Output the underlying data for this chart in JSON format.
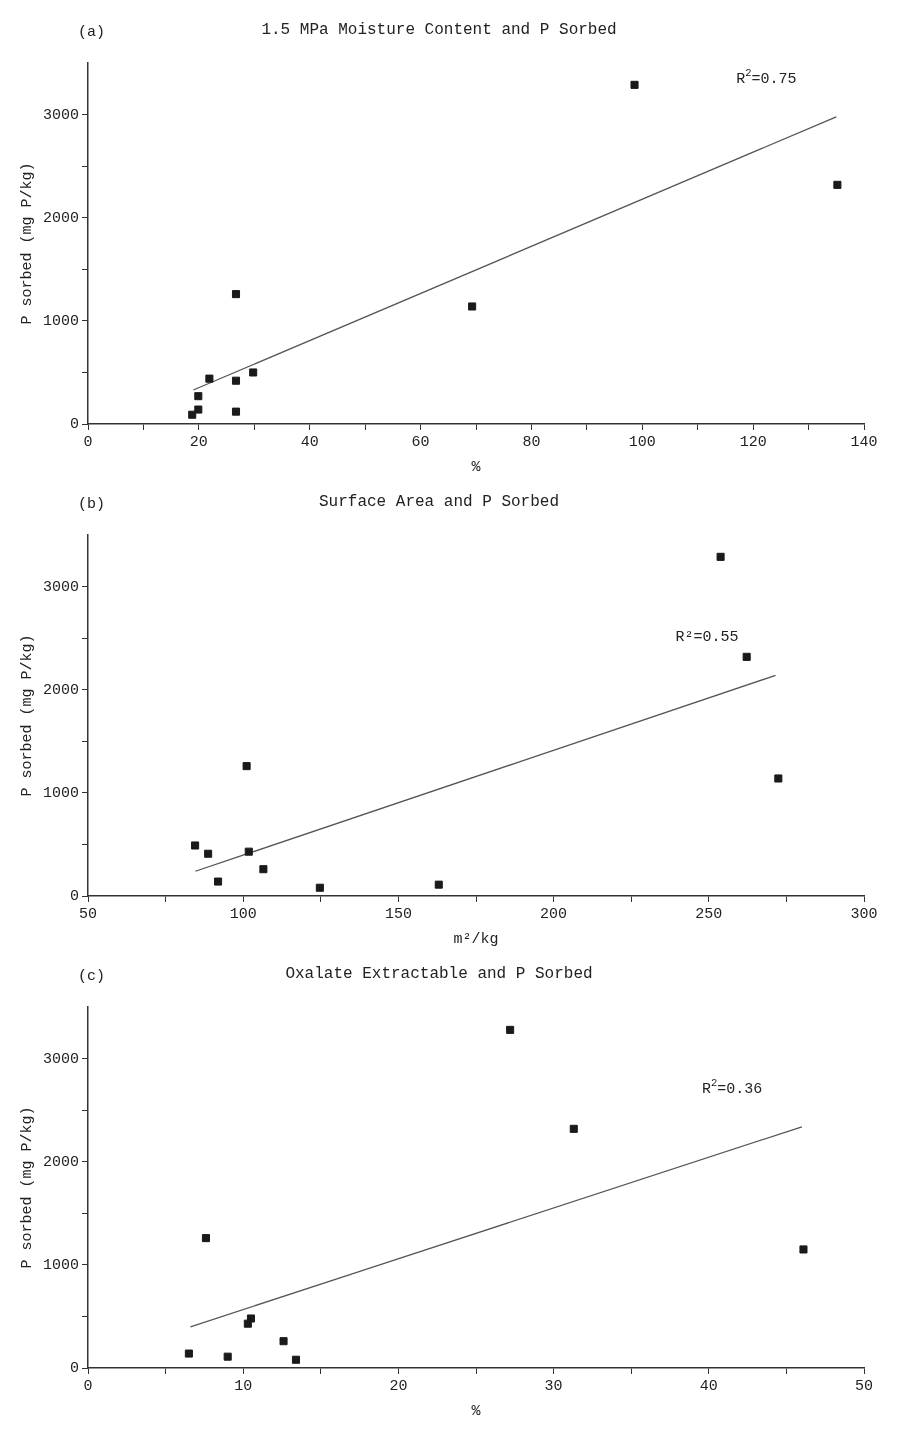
{
  "chart_data": [
    {
      "type": "scatter",
      "title": "1.5 MPa Moisture Content and P Sorbed",
      "xlabel": "%",
      "ylabel": "P sorbed (mg P/kg)",
      "annotations": [
        "(a)",
        "R$^{2}$=0.75"
      ],
      "xlim": [
        0,
        140
      ],
      "xticks": [
        0,
        {
          "value": 10,
          "label": null
        },
        20,
        {
          "value": 30,
          "label": null
        },
        40,
        {
          "value": 50,
          "label": null
        },
        60,
        {
          "value": 70,
          "label": null
        },
        80,
        {
          "value": 90,
          "label": null
        },
        100,
        {
          "value": 110,
          "label": null
        },
        120,
        {
          "value": 130,
          "label": null
        },
        140
      ],
      "ylim": [
        0,
        3500
      ],
      "yticks": [
        0,
        {
          "value": 500,
          "label": null
        },
        1000,
        {
          "value": 1500,
          "label": null
        },
        2000,
        {
          "value": 2500,
          "label": null
        },
        3000
      ],
      "series": [
        {
          "color": "#1a1a1a",
          "marker": "square",
          "x": [
            98.6,
            135.2,
            26.7,
            69.3,
            21.9,
            26.7,
            29.8,
            19.9,
            19.9,
            18.8,
            26.7
          ],
          "values": [
            3290,
            2320,
            1260,
            1140,
            440,
            420,
            500,
            270,
            140,
            90,
            120
          ]
        },
        {
          "type": "line",
          "color": "#555555",
          "marker": "none",
          "x": [
            19,
            135
          ],
          "values": [
            330,
            2980
          ]
        }
      ]
    },
    {
      "type": "scatter",
      "title": "Surface Area and P Sorbed",
      "xlabel": "m²/kg",
      "ylabel": "P sorbed (mg P/kg)",
      "annotations": [
        "(b)",
        "R²=0.55"
      ],
      "xlim": [
        50,
        300
      ],
      "xticks": [
        50,
        {
          "value": 75,
          "label": null
        },
        100,
        {
          "value": 125,
          "label": null
        },
        150,
        {
          "value": 175,
          "label": null
        },
        200,
        {
          "value": 225,
          "label": null
        },
        250,
        {
          "value": 275,
          "label": null
        },
        300
      ],
      "ylim": [
        0,
        3500
      ],
      "yticks": [
        0,
        {
          "value": 500,
          "label": null
        },
        1000,
        {
          "value": 1500,
          "label": null
        },
        2000,
        {
          "value": 2500,
          "label": null
        },
        3000
      ],
      "series": [
        {
          "color": "#1a1a1a",
          "marker": "square",
          "x": [
            253.8,
            262.2,
            272.4,
            101.1,
            84.5,
            88.7,
            101.8,
            106.5,
            91.9,
            124.7,
            163
          ],
          "values": [
            3290,
            2320,
            1140,
            1260,
            490,
            410,
            430,
            260,
            140,
            80,
            110
          ]
        },
        {
          "type": "line",
          "color": "#555555",
          "marker": "none",
          "x": [
            84.6,
            271.5
          ],
          "values": [
            240,
            2140
          ]
        }
      ]
    },
    {
      "type": "scatter",
      "title": "Oxalate Extractable and P Sorbed",
      "xlabel": "%",
      "ylabel": "P sorbed (mg P/kg)",
      "annotations": [
        "(c)",
        "R$^{2}$=0.36"
      ],
      "xlim": [
        0,
        50
      ],
      "xticks": [
        0,
        {
          "value": 5,
          "label": null
        },
        10,
        {
          "value": 15,
          "label": null
        },
        20,
        {
          "value": 25,
          "label": null
        },
        30,
        {
          "value": 35,
          "label": null
        },
        40,
        {
          "value": 45,
          "label": null
        },
        50
      ],
      "ylim": [
        0,
        3500
      ],
      "yticks": [
        0,
        {
          "value": 500,
          "label": null
        },
        1000,
        {
          "value": 1500,
          "label": null
        },
        2000,
        {
          "value": 2500,
          "label": null
        },
        3000
      ],
      "series": [
        {
          "color": "#1a1a1a",
          "marker": "square",
          "x": [
            27.2,
            31.3,
            46.1,
            7.6,
            10.5,
            10.3,
            12.6,
            6.5,
            9.0,
            13.4
          ],
          "values": [
            3280,
            2320,
            1150,
            1260,
            480,
            430,
            260,
            140,
            110,
            80
          ]
        },
        {
          "type": "line",
          "color": "#555555",
          "marker": "none",
          "x": [
            6.6,
            46.0
          ],
          "values": [
            400,
            2340
          ]
        }
      ]
    }
  ]
}
